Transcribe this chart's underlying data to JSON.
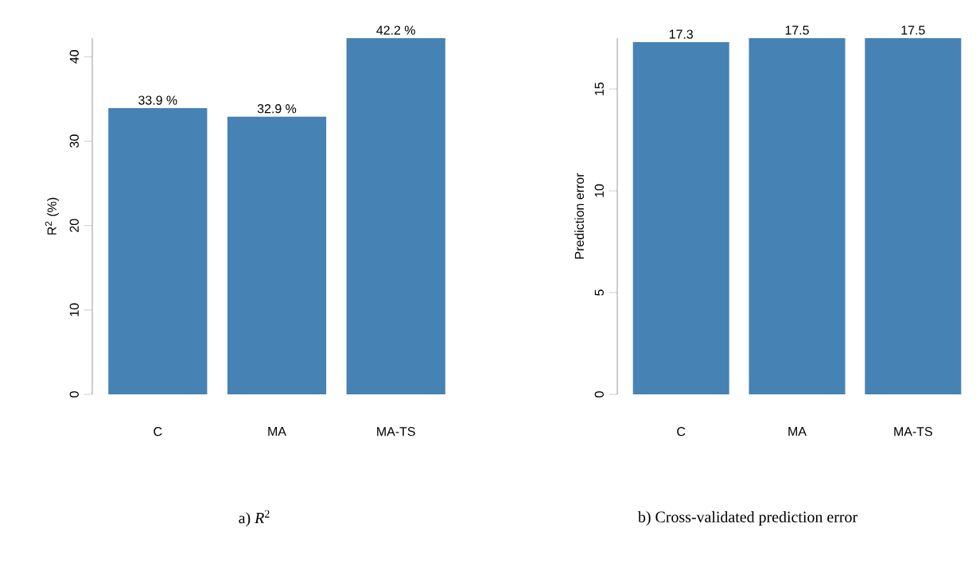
{
  "chart_data": [
    {
      "type": "bar",
      "categories": [
        "C",
        "MA",
        "MA-TS"
      ],
      "values": [
        33.9,
        32.9,
        42.2
      ],
      "color": "#4682b4",
      "value_labels": [
        "33.9 %",
        "32.9 %",
        "42.2 %"
      ],
      "ylabel": "R$^{2}$ (%)",
      "ylim": [
        0,
        42.2
      ],
      "yticks": [
        0,
        10,
        20,
        30,
        40
      ],
      "annotations": [
        "a)  *R*$^{2}$"
      ]
    },
    {
      "type": "bar",
      "categories": [
        "C",
        "MA",
        "MA-TS"
      ],
      "values": [
        17.3,
        17.5,
        17.5
      ],
      "color": "#4682b4",
      "data_labels": true,
      "ylabel": "Prediction error",
      "ylim": [
        0,
        17.5
      ],
      "yticks": [
        0,
        5,
        10,
        15
      ],
      "annotations": [
        "b)  Cross-validated prediction error"
      ]
    }
  ]
}
